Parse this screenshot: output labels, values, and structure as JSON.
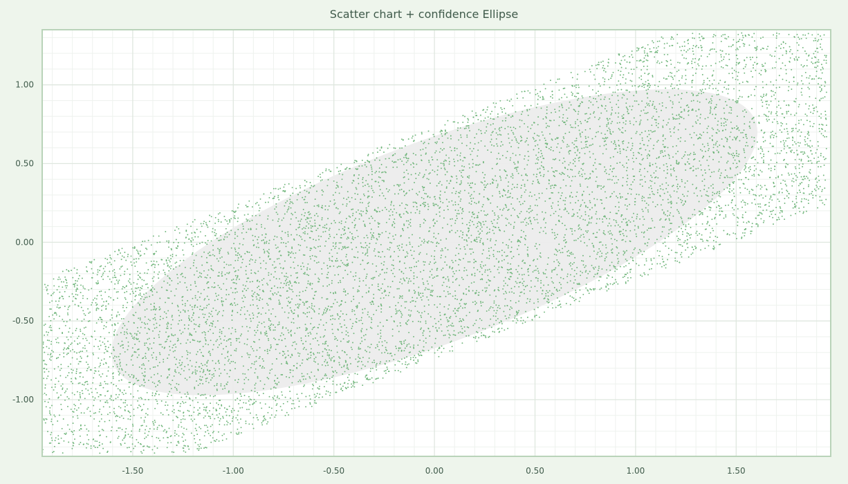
{
  "chart_data": {
    "type": "scatter",
    "title": "Scatter chart + confidence Ellipse",
    "xlabel": "",
    "ylabel": "",
    "xlim": [
      -1.95,
      1.97
    ],
    "ylim": [
      -1.36,
      1.35
    ],
    "x_ticks": [
      "-1.50",
      "-1.00",
      "-0.50",
      "0.00",
      "0.50",
      "1.00",
      "1.50"
    ],
    "x_tick_values": [
      -1.5,
      -1.0,
      -0.5,
      0.0,
      0.5,
      1.0,
      1.5
    ],
    "y_ticks": [
      "1.00",
      "0.50",
      "0.00",
      "-0.50",
      "-1.00"
    ],
    "y_tick_values": [
      1.0,
      0.5,
      0.0,
      -0.5,
      -1.0
    ],
    "grid": true,
    "legend": "none",
    "series": [
      {
        "kind": "points",
        "distribution": "uniform x in [-1.95, 1.95]; y ≈ 0.5·x + uniform noise of ±0.74, clipped to axis range",
        "point_count": 9000,
        "color": "#6fb57a"
      }
    ],
    "confidence_ellipse": {
      "center": [
        0.0,
        0.0
      ],
      "semi_axis_major": 1.775,
      "semi_axis_minor": 0.61,
      "angle_deg_data": 27,
      "fill": "#ececec"
    },
    "colors": {
      "background": "#eef5ec",
      "plot_border": "#b9d3b9",
      "grid_major": "#dfe7df",
      "grid_minor": "#eef2ee",
      "tick_label": "#3f5a4a"
    }
  }
}
